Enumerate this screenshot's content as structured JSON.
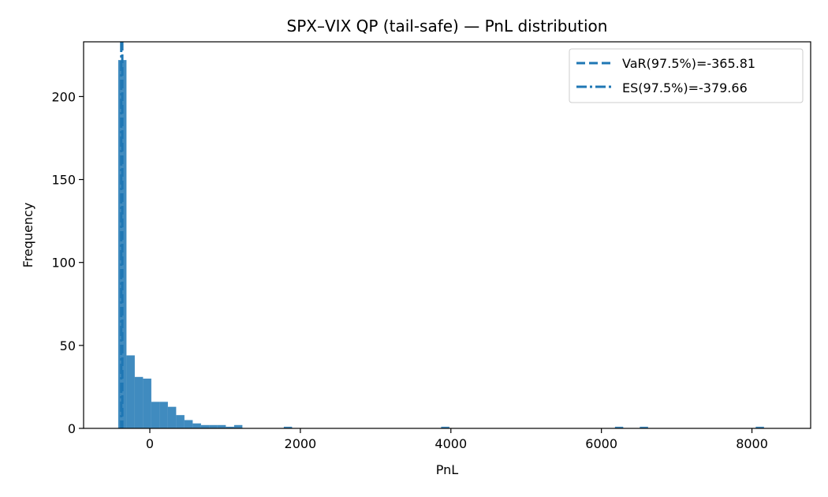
{
  "chart_data": {
    "type": "histogram",
    "title": "SPX–VIX QP (tail-safe) — PnL distribution",
    "xlabel": "PnL",
    "ylabel": "Frequency",
    "xlim": [
      -880,
      8780
    ],
    "ylim": [
      0,
      233
    ],
    "xticks": [
      0,
      2000,
      4000,
      6000,
      8000
    ],
    "yticks": [
      0,
      50,
      100,
      150,
      200
    ],
    "bar_color": "#1f77b4",
    "bin_start": -420,
    "bin_width": 110,
    "counts": [
      222,
      44,
      31,
      30,
      16,
      16,
      13,
      8,
      5,
      3,
      2,
      2,
      2,
      1,
      2,
      0,
      0,
      0,
      0,
      0,
      1,
      0,
      0,
      0,
      0,
      0,
      0,
      0,
      0,
      0,
      0,
      0,
      0,
      0,
      0,
      0,
      0,
      0,
      0,
      1,
      0,
      0,
      0,
      0,
      0,
      0,
      0,
      0,
      0,
      0,
      0,
      0,
      0,
      0,
      0,
      0,
      0,
      0,
      0,
      0,
      1,
      0,
      0,
      1,
      0,
      0,
      0,
      0,
      0,
      0,
      0,
      0,
      0,
      0,
      0,
      0,
      0,
      1
    ],
    "vlines": [
      {
        "label": "VaR(97.5%)=-365.81",
        "x": -365.81,
        "style": "dashed"
      },
      {
        "label": "ES(97.5%)=-379.66",
        "x": -379.66,
        "style": "dashdot"
      }
    ],
    "legend_position": "top-right",
    "grid": false
  }
}
